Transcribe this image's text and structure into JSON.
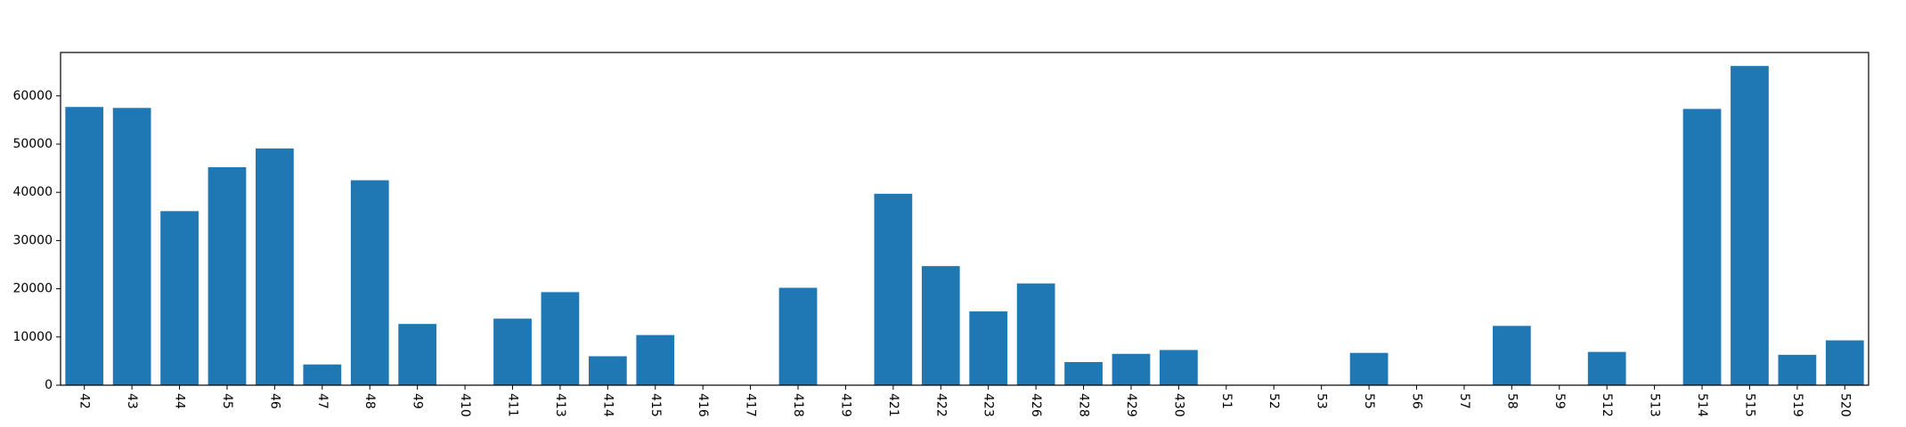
{
  "chart_data": {
    "type": "bar",
    "title": "",
    "xlabel": "",
    "ylabel": "",
    "ylim": [
      0,
      69000
    ],
    "yticks": [
      0,
      10000,
      20000,
      30000,
      40000,
      50000,
      60000
    ],
    "grid": false,
    "bar_color": "#1f77b4",
    "categories": [
      "42",
      "43",
      "44",
      "45",
      "46",
      "47",
      "48",
      "49",
      "410",
      "411",
      "413",
      "414",
      "415",
      "416",
      "417",
      "418",
      "419",
      "421",
      "422",
      "423",
      "426",
      "428",
      "429",
      "430",
      "51",
      "52",
      "53",
      "55",
      "56",
      "57",
      "58",
      "59",
      "512",
      "513",
      "514",
      "515",
      "519",
      "520"
    ],
    "values": [
      57700,
      57500,
      36100,
      45200,
      49100,
      4300,
      42500,
      12700,
      0,
      13800,
      19300,
      6000,
      10400,
      0,
      0,
      20200,
      0,
      39700,
      24700,
      15300,
      21100,
      4800,
      6500,
      7300,
      0,
      0,
      0,
      6700,
      0,
      0,
      12300,
      0,
      6900,
      0,
      57300,
      66200,
      6300,
      9300
    ]
  }
}
